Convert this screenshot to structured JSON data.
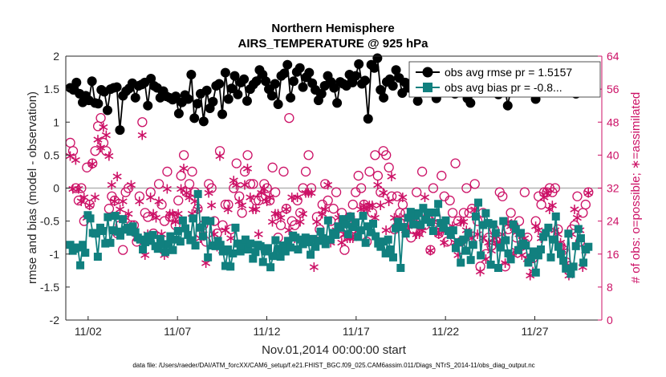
{
  "chart_data": {
    "type": "line",
    "title": "Northern Hemisphere",
    "subtitle": "AIRS_TEMPERATURE @ 925 hPa",
    "xlabel": "Nov.01,2014 00:00:00 start",
    "ylabel_left": "rmse and bias (model - observation)",
    "ylabel_right": "# of obs: o=possible; ∗=assimilated",
    "footnote": "data file: /Users/raeder/DAI/ATM_forcXX/CAM6_setup/f.e21.FHIST_BGC.f09_025.CAM6assim.011/Diags_NTrS_2014-11/obs_diag_output.nc",
    "xlim": [
      0.75,
      30.75
    ],
    "ylim_left": [
      -2,
      2
    ],
    "ylim_right": [
      0,
      64
    ],
    "x_ticks": [
      {
        "v": 2,
        "label": "11/02"
      },
      {
        "v": 7,
        "label": "11/07"
      },
      {
        "v": 12,
        "label": "11/12"
      },
      {
        "v": 17,
        "label": "11/17"
      },
      {
        "v": 22,
        "label": "11/22"
      },
      {
        "v": 27,
        "label": "11/27"
      }
    ],
    "y_ticks_left": [
      -2,
      -1.5,
      -1,
      -0.5,
      0,
      0.5,
      1,
      1.5,
      2
    ],
    "y_ticks_right": [
      0,
      8,
      16,
      24,
      32,
      40,
      48,
      56,
      64
    ],
    "legend": {
      "placement": "top-right",
      "entries": [
        {
          "label": "obs avg rmse pr = 1.5157",
          "series": "rmse"
        },
        {
          "label": "obs avg bias pr = -0.8...",
          "series": "bias"
        }
      ]
    },
    "zero_line": 0,
    "colors": {
      "rmse": "#000000",
      "bias": "#11807f",
      "obs_count": "#cc1166",
      "zero_line": "#b3b3b3",
      "axes": "#262626"
    },
    "series": [
      {
        "name": "rmse",
        "axis": "left",
        "marker": "circle",
        "values": [
          1.52,
          1.49,
          1.6,
          1.43,
          1.3,
          1.4,
          1.33,
          1.62,
          1.29,
          1.28,
          1.49,
          1.46,
          1.18,
          1.5,
          1.52,
          1.53,
          0.88,
          1.4,
          1.47,
          1.51,
          1.59,
          1.37,
          1.55,
          1.57,
          1.6,
          1.25,
          1.66,
          1.55,
          1.52,
          1.37,
          1.47,
          1.39,
          1.37,
          1.34,
          1.39,
          1.13,
          1.3,
          1.41,
          1.35,
          1.72,
          1.06,
          1.28,
          1.43,
          1.01,
          1.48,
          1.21,
          1.31,
          1.55,
          1.58,
          1.12,
          1.75,
          1.35,
          1.51,
          1.7,
          1.42,
          1.6,
          1.65,
          1.32,
          1.5,
          1.57,
          1.62,
          1.79,
          1.72,
          1.62,
          1.5,
          1.4,
          1.58,
          1.27,
          1.7,
          1.74,
          1.87,
          1.37,
          1.62,
          1.76,
          1.82,
          1.53,
          1.68,
          1.75,
          1.59,
          1.49,
          1.33,
          1.43,
          1.55,
          1.7,
          1.61,
          1.52,
          1.29,
          1.61,
          1.58,
          1.55,
          1.72,
          1.6,
          1.7,
          1.88,
          1.58,
          1.63,
          1.05,
          1.87,
          1.82,
          1.97,
          1.49,
          1.37,
          1.61,
          1.65,
          1.55,
          1.79,
          1.67,
          1.44,
          1.6,
          1.52,
          1.57,
          1.67,
          1.32,
          1.55,
          1.71,
          1.67,
          1.48,
          1.57,
          1.36,
          1.68,
          1.75,
          1.63,
          1.54,
          1.55,
          1.43,
          1.62,
          1.68,
          1.53,
          1.36,
          1.29,
          1.51,
          1.47,
          1.69,
          1.59,
          1.74,
          1.46,
          1.63,
          1.53,
          1.42,
          1.61,
          1.55,
          1.25,
          1.5,
          1.58,
          1.61,
          1.67,
          1.52,
          1.63,
          1.65,
          1.58,
          1.35,
          1.52,
          1.75,
          1.6,
          1.68,
          1.74,
          1.59,
          1.55,
          1.52,
          1.63,
          1.75,
          1.53,
          1.59,
          1.43,
          1.64,
          1.68,
          1.55,
          1.6
        ]
      },
      {
        "name": "bias",
        "axis": "left",
        "marker": "square",
        "values": [
          -0.86,
          -0.95,
          -0.92,
          -0.9,
          -1.17,
          -0.86,
          -0.98,
          -0.41,
          -0.46,
          -0.68,
          -0.69,
          -1.04,
          -0.6,
          -0.65,
          -0.84,
          -0.44,
          -0.83,
          -0.64,
          -0.42,
          -0.66,
          -0.72,
          -0.47,
          -0.63,
          -0.6,
          -0.66,
          -0.58,
          -0.67,
          -0.75,
          -0.78,
          -0.93,
          -0.82,
          -0.73,
          -0.8,
          -0.71,
          -0.88,
          -0.92,
          -0.77,
          -0.85,
          -0.97,
          -0.85,
          -0.73,
          -0.94,
          -0.78,
          -0.65,
          -0.81,
          -0.49,
          -0.61,
          -0.71,
          -0.79,
          -0.46,
          -0.87,
          -0.09,
          -0.6,
          -0.73,
          -0.49,
          -1.05,
          -0.5,
          -0.87,
          -0.88,
          -0.8,
          -0.86,
          -0.96,
          -1.18,
          -0.93,
          -1.19,
          -0.99,
          -0.6,
          -0.84,
          -0.96,
          -0.87,
          -0.78,
          -0.93,
          -0.84,
          -1.07,
          -0.97,
          -0.86,
          -0.88,
          -1.12,
          -0.96,
          -0.91,
          -1.2,
          -1.03,
          -0.79,
          -0.92,
          -1.04,
          -0.87,
          -0.96,
          -0.8,
          -0.9,
          -0.72,
          -0.75,
          -0.93,
          -0.78,
          -0.85,
          -0.75,
          -0.82,
          -1.01,
          -0.77,
          -0.89,
          -0.8,
          -0.66,
          -0.76,
          -0.85,
          -0.49,
          -0.78,
          -0.68,
          -0.71,
          -0.58,
          -0.6,
          -0.47,
          -0.55,
          -0.7,
          -0.43,
          -0.59,
          -0.52,
          -0.74,
          -0.64,
          -0.42,
          -0.83,
          -0.58,
          -0.67,
          -0.54,
          -0.73,
          -0.84,
          -0.89,
          -0.81,
          -0.99,
          -0.78,
          -0.93,
          -1.05,
          -0.61,
          -0.51,
          -1.21,
          -0.59,
          -0.69,
          -0.45,
          -0.36,
          -0.55,
          -0.42,
          -0.38,
          -0.56,
          -0.3,
          -0.48,
          -0.37,
          -0.52,
          -0.65,
          -0.37,
          -0.24,
          -0.53,
          -0.6,
          -0.49,
          -0.65,
          -0.71,
          -0.64,
          -0.91,
          -0.82,
          -1.13,
          -0.78,
          -0.95,
          -0.68,
          -1.09,
          -0.86,
          -0.43,
          -0.22,
          -1.02,
          -0.56,
          -0.38,
          -0.53,
          -1.16,
          -0.55,
          -0.68,
          -1.21,
          -0.9,
          -0.5,
          -0.79,
          -0.99,
          -1.08,
          -0.55,
          -0.62,
          -0.94,
          -0.68,
          -0.84,
          -0.87,
          -1.13,
          -1.06,
          -0.96,
          -1.28,
          -1.02,
          -0.93,
          -0.74,
          -0.68,
          -0.6,
          -1.05,
          -0.78,
          -0.43,
          -0.89,
          -1.0,
          -1.1,
          -1.22,
          -0.69,
          -1.3,
          -1.19,
          -0.88,
          -0.62,
          -0.76,
          -1.13,
          -0.93,
          -0.89
        ]
      },
      {
        "name": "possible",
        "axis": "right",
        "marker": "open-circle",
        "values": [
          43,
          41,
          32,
          29,
          32,
          24,
          37,
          28,
          38,
          41,
          47,
          49,
          43,
          41,
          27,
          30,
          29,
          21,
          23,
          17,
          31,
          32,
          23,
          23,
          19,
          30,
          48,
          26,
          25,
          31,
          21,
          19,
          33,
          28,
          24,
          36,
          25,
          25,
          23,
          29,
          35,
          40,
          31,
          33,
          36,
          31,
          27,
          21,
          23,
          19,
          33,
          32,
          24,
          21,
          41,
          23,
          28,
          28,
          22,
          32,
          38,
          30,
          26,
          36,
          40,
          33,
          33,
          29,
          29,
          30,
          33,
          32,
          29,
          37,
          31,
          20,
          23,
          36,
          27,
          49,
          24,
          23,
          29,
          26,
          32,
          36,
          40,
          32,
          19,
          25,
          22,
          28,
          33,
          29,
          24,
          27,
          31,
          21,
          26,
          17,
          24,
          25,
          28,
          31,
          35,
          32,
          28,
          19,
          36,
          26,
          40,
          35,
          31,
          41,
          40,
          37,
          30,
          22,
          30,
          26,
          28,
          26,
          24,
          20,
          22,
          31,
          23,
          36,
          23,
          25,
          17,
          32,
          25,
          21,
          35,
          30,
          19,
          29,
          26,
          38,
          24,
          19,
          26,
          32,
          26,
          27,
          33,
          24,
          13,
          26,
          16,
          20,
          18,
          22,
          19,
          31,
          30,
          13,
          22,
          26,
          23,
          20,
          24,
          18,
          31,
          20,
          15,
          15,
          24,
          30,
          28,
          31,
          31,
          32,
          31,
          32,
          22,
          18,
          17,
          14,
          12,
          22,
          23,
          30,
          19,
          26,
          28,
          31
        ]
      },
      {
        "name": "assimilated",
        "axis": "right",
        "marker": "asterisk",
        "values": [
          40,
          32,
          39,
          32,
          29,
          30,
          25,
          28,
          38,
          30,
          44,
          42,
          47,
          45,
          40,
          33,
          29,
          35,
          27,
          29,
          25,
          26,
          33,
          22,
          20,
          29,
          45,
          16,
          21,
          30,
          26,
          25,
          29,
          21,
          16,
          32,
          26,
          26,
          24,
          26,
          32,
          37,
          31,
          30,
          26,
          29,
          27,
          20,
          21,
          14,
          31,
          28,
          21,
          18,
          40,
          17,
          22,
          27,
          20,
          34,
          33,
          29,
          28,
          33,
          37,
          30,
          27,
          27,
          21,
          31,
          32,
          29,
          30,
          24,
          26,
          26,
          25,
          17,
          27,
          22,
          30,
          20,
          30,
          24,
          26,
          31,
          31,
          31,
          13,
          24,
          20,
          26,
          27,
          33,
          19,
          21,
          22,
          25,
          19,
          21,
          20,
          20,
          20,
          21,
          22,
          27,
          28,
          27,
          28,
          28,
          25,
          33,
          28,
          31,
          22,
          29,
          35,
          25,
          24,
          25,
          30,
          22,
          23,
          25,
          24,
          21,
          21,
          22,
          30,
          25,
          17,
          24,
          22,
          21,
          22,
          19,
          22,
          22,
          23,
          19,
          16,
          24,
          24,
          22,
          21,
          20,
          27,
          21,
          12,
          20,
          15,
          19,
          17,
          20,
          19,
          19,
          21,
          14,
          24,
          23,
          16,
          17,
          21,
          16,
          20,
          15,
          11,
          12,
          23,
          22,
          20,
          30,
          31,
          27,
          28,
          22,
          21,
          19,
          17,
          14,
          11,
          21,
          27,
          25,
          22,
          13,
          17,
          31
        ]
      }
    ]
  }
}
